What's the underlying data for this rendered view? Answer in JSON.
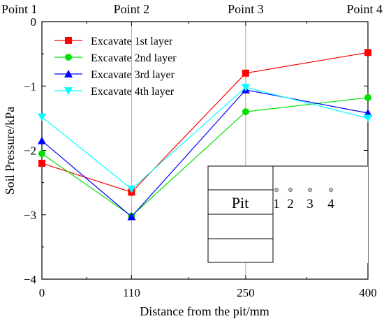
{
  "chart_data": {
    "type": "line",
    "xlabel": "Distance from the pit/mm",
    "ylabel": "Soil Pressure/kPa",
    "x": [
      0,
      110,
      250,
      400
    ],
    "x_tick_labels": [
      "0",
      "110",
      "250",
      "400"
    ],
    "ylim": [
      -4,
      0
    ],
    "y_ticks": [
      0,
      -1,
      -2,
      -3,
      -4
    ],
    "y_tick_labels": [
      "0",
      "−1",
      "−2",
      "−3",
      "−4"
    ],
    "point_labels": [
      "Point 1",
      "Point 2",
      "Point 3",
      "Point 4"
    ],
    "legend_position": "top-left",
    "grid": false,
    "series": [
      {
        "name": "Excavate 1st layer",
        "color": "#ff0000",
        "marker": "square",
        "values": [
          -2.2,
          -2.65,
          -0.8,
          -0.48
        ]
      },
      {
        "name": "Excavate 2nd layer",
        "color": "#00e000",
        "marker": "circle",
        "values": [
          -2.05,
          -3.02,
          -1.4,
          -1.18
        ]
      },
      {
        "name": "Excavate 3rd layer",
        "color": "#0000ff",
        "marker": "triangle-up",
        "values": [
          -1.85,
          -3.03,
          -1.06,
          -1.42
        ]
      },
      {
        "name": "Excavate 4th layer",
        "color": "#00ffff",
        "marker": "triangle-down",
        "values": [
          -1.48,
          -2.6,
          -1.02,
          -1.5
        ]
      }
    ],
    "inset": {
      "pit_label": "Pit",
      "sensor_labels": [
        "1",
        "2",
        "3",
        "4"
      ]
    }
  }
}
